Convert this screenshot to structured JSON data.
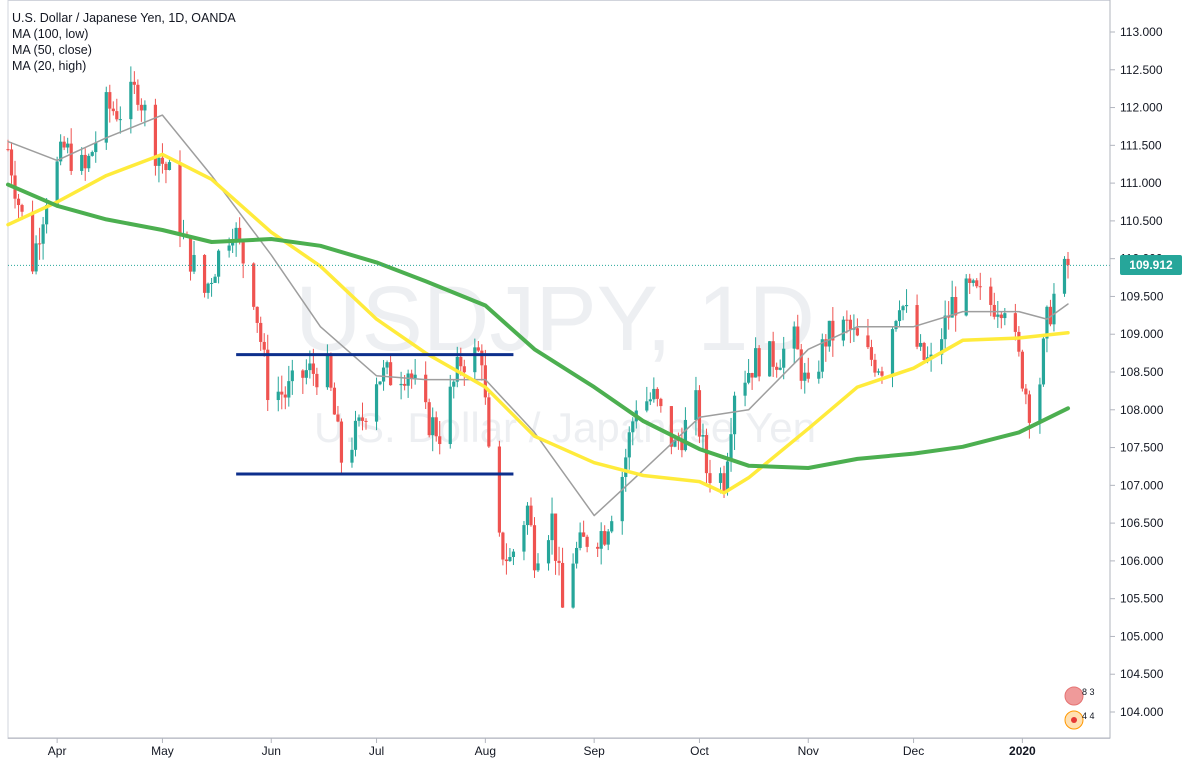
{
  "chart": {
    "title": "U.S. Dollar / Japanese Yen, 1D, OANDA",
    "indicators": [
      "MA (100, low)",
      "MA (50, close)",
      "MA (20, high)"
    ],
    "watermark_symbol": "USDJPY, 1D",
    "watermark_name": "U.S. Dollar / Japanese Yen",
    "last_price_label": "109.912",
    "colors": {
      "up": "#26a69a",
      "down": "#ef5350",
      "ma100": "#4caf50",
      "ma50": "#ffeb3b",
      "ma20": "#9e9e9e",
      "level_line": "#0d2f8c",
      "last_price": "#26a69a"
    },
    "badges": [
      "8 3",
      "4 4"
    ]
  },
  "chart_data": {
    "type": "candlestick",
    "title": "U.S. Dollar / Japanese Yen, 1D, OANDA",
    "x_tick_labels": [
      "Apr",
      "May",
      "Jun",
      "Jul",
      "Aug",
      "Sep",
      "Oct",
      "Nov",
      "Dec",
      "2020"
    ],
    "y_tick_labels": [
      "104.000",
      "104.500",
      "105.000",
      "105.500",
      "106.000",
      "106.500",
      "107.000",
      "107.500",
      "108.000",
      "108.500",
      "109.000",
      "109.500",
      "110.000",
      "110.500",
      "111.000",
      "111.500",
      "112.000",
      "112.500",
      "113.000"
    ],
    "ylim": [
      103.6,
      113.3
    ],
    "last_price": 109.912,
    "horizontal_levels": [
      108.73,
      107.15
    ],
    "close_path": [
      {
        "date": "2019-03-18",
        "close": 111.45
      },
      {
        "date": "2019-03-21",
        "close": 110.75
      },
      {
        "date": "2019-03-25",
        "close": 109.95
      },
      {
        "date": "2019-03-29",
        "close": 110.85
      },
      {
        "date": "2019-04-03",
        "close": 111.45
      },
      {
        "date": "2019-04-09",
        "close": 111.15
      },
      {
        "date": "2019-04-15",
        "close": 112.0
      },
      {
        "date": "2019-04-19",
        "close": 111.95
      },
      {
        "date": "2019-04-24",
        "close": 112.25
      },
      {
        "date": "2019-04-29",
        "close": 111.45
      },
      {
        "date": "2019-05-03",
        "close": 111.1
      },
      {
        "date": "2019-05-07",
        "close": 110.25
      },
      {
        "date": "2019-05-13",
        "close": 109.55
      },
      {
        "date": "2019-05-17",
        "close": 110.05
      },
      {
        "date": "2019-05-21",
        "close": 110.45
      },
      {
        "date": "2019-05-27",
        "close": 109.55
      },
      {
        "date": "2019-05-31",
        "close": 108.3
      },
      {
        "date": "2019-06-05",
        "close": 108.2
      },
      {
        "date": "2019-06-11",
        "close": 108.5
      },
      {
        "date": "2019-06-17",
        "close": 108.5
      },
      {
        "date": "2019-06-21",
        "close": 107.35
      },
      {
        "date": "2019-06-26",
        "close": 107.75
      },
      {
        "date": "2019-07-01",
        "close": 108.45
      },
      {
        "date": "2019-07-05",
        "close": 108.45
      },
      {
        "date": "2019-07-10",
        "close": 108.55
      },
      {
        "date": "2019-07-15",
        "close": 107.9
      },
      {
        "date": "2019-07-19",
        "close": 107.7
      },
      {
        "date": "2019-07-25",
        "close": 108.65
      },
      {
        "date": "2019-07-31",
        "close": 108.75
      },
      {
        "date": "2019-08-02",
        "close": 107.35
      },
      {
        "date": "2019-08-05",
        "close": 106.2
      },
      {
        "date": "2019-08-08",
        "close": 106.0
      },
      {
        "date": "2019-08-13",
        "close": 106.7
      },
      {
        "date": "2019-08-15",
        "close": 106.1
      },
      {
        "date": "2019-08-20",
        "close": 106.55
      },
      {
        "date": "2019-08-23",
        "close": 105.35
      },
      {
        "date": "2019-08-26",
        "close": 106.05
      },
      {
        "date": "2019-08-30",
        "close": 106.3
      },
      {
        "date": "2019-09-04",
        "close": 106.4
      },
      {
        "date": "2019-09-09",
        "close": 107.15
      },
      {
        "date": "2019-09-13",
        "close": 108.1
      },
      {
        "date": "2019-09-18",
        "close": 108.15
      },
      {
        "date": "2019-09-24",
        "close": 107.5
      },
      {
        "date": "2019-09-30",
        "close": 108.05
      },
      {
        "date": "2019-10-03",
        "close": 107.2
      },
      {
        "date": "2019-10-08",
        "close": 107.1
      },
      {
        "date": "2019-10-11",
        "close": 108.3
      },
      {
        "date": "2019-10-17",
        "close": 108.65
      },
      {
        "date": "2019-10-23",
        "close": 108.7
      },
      {
        "date": "2019-10-28",
        "close": 108.9
      },
      {
        "date": "2019-11-01",
        "close": 108.2
      },
      {
        "date": "2019-11-06",
        "close": 108.95
      },
      {
        "date": "2019-11-12",
        "close": 109.1
      },
      {
        "date": "2019-11-18",
        "close": 108.7
      },
      {
        "date": "2019-11-22",
        "close": 108.6
      },
      {
        "date": "2019-11-27",
        "close": 109.5
      },
      {
        "date": "2019-12-03",
        "close": 108.7
      },
      {
        "date": "2019-12-06",
        "close": 108.6
      },
      {
        "date": "2019-12-12",
        "close": 109.4
      },
      {
        "date": "2019-12-17",
        "close": 109.55
      },
      {
        "date": "2019-12-23",
        "close": 109.4
      },
      {
        "date": "2019-12-27",
        "close": 109.45
      },
      {
        "date": "2019-12-31",
        "close": 108.65
      },
      {
        "date": "2020-01-03",
        "close": 108.05
      },
      {
        "date": "2020-01-06",
        "close": 108.4
      },
      {
        "date": "2020-01-08",
        "close": 109.15
      },
      {
        "date": "2020-01-10",
        "close": 109.5
      },
      {
        "date": "2020-01-14",
        "close": 109.91
      }
    ],
    "ma100_low": [
      {
        "date": "2019-03-18",
        "value": 110.98
      },
      {
        "date": "2019-04-01",
        "value": 110.7
      },
      {
        "date": "2019-04-15",
        "value": 110.52
      },
      {
        "date": "2019-05-01",
        "value": 110.38
      },
      {
        "date": "2019-05-15",
        "value": 110.22
      },
      {
        "date": "2019-06-01",
        "value": 110.26
      },
      {
        "date": "2019-06-15",
        "value": 110.17
      },
      {
        "date": "2019-07-01",
        "value": 109.95
      },
      {
        "date": "2019-07-15",
        "value": 109.7
      },
      {
        "date": "2019-08-01",
        "value": 109.38
      },
      {
        "date": "2019-08-15",
        "value": 108.8
      },
      {
        "date": "2019-09-01",
        "value": 108.3
      },
      {
        "date": "2019-09-15",
        "value": 107.85
      },
      {
        "date": "2019-10-01",
        "value": 107.48
      },
      {
        "date": "2019-10-15",
        "value": 107.26
      },
      {
        "date": "2019-11-01",
        "value": 107.23
      },
      {
        "date": "2019-11-15",
        "value": 107.35
      },
      {
        "date": "2019-12-01",
        "value": 107.42
      },
      {
        "date": "2019-12-15",
        "value": 107.51
      },
      {
        "date": "2019-12-31",
        "value": 107.7
      },
      {
        "date": "2020-01-14",
        "value": 108.02
      }
    ],
    "ma50_close": [
      {
        "date": "2019-03-18",
        "value": 110.45
      },
      {
        "date": "2019-04-01",
        "value": 110.75
      },
      {
        "date": "2019-04-15",
        "value": 111.1
      },
      {
        "date": "2019-05-01",
        "value": 111.38
      },
      {
        "date": "2019-05-15",
        "value": 111.05
      },
      {
        "date": "2019-06-01",
        "value": 110.35
      },
      {
        "date": "2019-06-15",
        "value": 109.9
      },
      {
        "date": "2019-07-01",
        "value": 109.2
      },
      {
        "date": "2019-07-15",
        "value": 108.75
      },
      {
        "date": "2019-08-01",
        "value": 108.3
      },
      {
        "date": "2019-08-15",
        "value": 107.65
      },
      {
        "date": "2019-09-01",
        "value": 107.3
      },
      {
        "date": "2019-09-15",
        "value": 107.13
      },
      {
        "date": "2019-10-01",
        "value": 107.05
      },
      {
        "date": "2019-10-08",
        "value": 106.9
      },
      {
        "date": "2019-10-15",
        "value": 107.1
      },
      {
        "date": "2019-11-01",
        "value": 107.75
      },
      {
        "date": "2019-11-15",
        "value": 108.3
      },
      {
        "date": "2019-12-01",
        "value": 108.55
      },
      {
        "date": "2019-12-15",
        "value": 108.92
      },
      {
        "date": "2019-12-31",
        "value": 108.95
      },
      {
        "date": "2020-01-14",
        "value": 109.02
      }
    ],
    "ma20_high": [
      {
        "date": "2019-03-18",
        "value": 111.55
      },
      {
        "date": "2019-04-01",
        "value": 111.3
      },
      {
        "date": "2019-04-15",
        "value": 111.6
      },
      {
        "date": "2019-05-01",
        "value": 111.9
      },
      {
        "date": "2019-05-15",
        "value": 111.1
      },
      {
        "date": "2019-06-01",
        "value": 110.05
      },
      {
        "date": "2019-06-15",
        "value": 109.1
      },
      {
        "date": "2019-07-01",
        "value": 108.45
      },
      {
        "date": "2019-07-15",
        "value": 108.4
      },
      {
        "date": "2019-08-01",
        "value": 108.4
      },
      {
        "date": "2019-08-15",
        "value": 107.7
      },
      {
        "date": "2019-09-01",
        "value": 106.6
      },
      {
        "date": "2019-09-15",
        "value": 107.2
      },
      {
        "date": "2019-10-01",
        "value": 107.9
      },
      {
        "date": "2019-10-15",
        "value": 108.0
      },
      {
        "date": "2019-11-01",
        "value": 108.8
      },
      {
        "date": "2019-11-15",
        "value": 109.1
      },
      {
        "date": "2019-12-01",
        "value": 109.1
      },
      {
        "date": "2019-12-15",
        "value": 109.3
      },
      {
        "date": "2019-12-31",
        "value": 109.3
      },
      {
        "date": "2020-01-08",
        "value": 109.2
      },
      {
        "date": "2020-01-14",
        "value": 109.4
      }
    ]
  }
}
